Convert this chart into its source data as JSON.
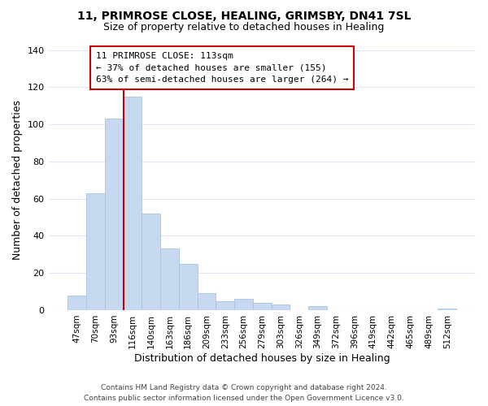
{
  "title": "11, PRIMROSE CLOSE, HEALING, GRIMSBY, DN41 7SL",
  "subtitle": "Size of property relative to detached houses in Healing",
  "xlabel": "Distribution of detached houses by size in Healing",
  "ylabel": "Number of detached properties",
  "bar_labels": [
    "47sqm",
    "70sqm",
    "93sqm",
    "116sqm",
    "140sqm",
    "163sqm",
    "186sqm",
    "209sqm",
    "233sqm",
    "256sqm",
    "279sqm",
    "303sqm",
    "326sqm",
    "349sqm",
    "372sqm",
    "396sqm",
    "419sqm",
    "442sqm",
    "465sqm",
    "489sqm",
    "512sqm"
  ],
  "bar_values": [
    8,
    63,
    103,
    115,
    52,
    33,
    25,
    9,
    5,
    6,
    4,
    3,
    0,
    2,
    0,
    0,
    0,
    0,
    0,
    0,
    1
  ],
  "bar_color": "#c6d9f0",
  "bar_edge_color": "#a8c4e0",
  "vline_color": "#cc0000",
  "ylim": [
    0,
    140
  ],
  "yticks": [
    0,
    20,
    40,
    60,
    80,
    100,
    120,
    140
  ],
  "annotation_title": "11 PRIMROSE CLOSE: 113sqm",
  "annotation_line1": "← 37% of detached houses are smaller (155)",
  "annotation_line2": "63% of semi-detached houses are larger (264) →",
  "annotation_box_color": "#ffffff",
  "annotation_box_edge": "#cc0000",
  "footer_line1": "Contains HM Land Registry data © Crown copyright and database right 2024.",
  "footer_line2": "Contains public sector information licensed under the Open Government Licence v3.0.",
  "background_color": "#ffffff",
  "grid_color": "#dce8f5"
}
